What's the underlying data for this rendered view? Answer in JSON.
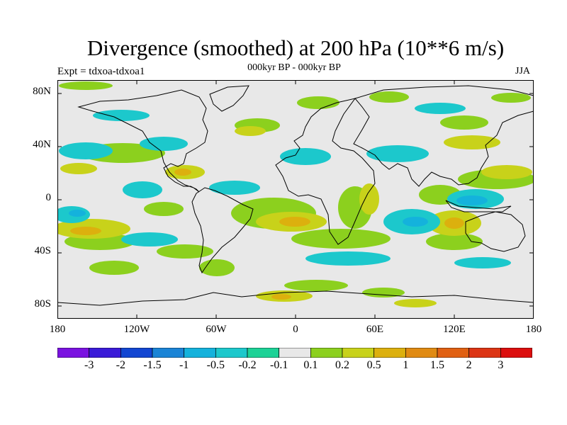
{
  "title": "Divergence (smoothed) at 200 hPa (10**6 m/s)",
  "subtitle": "000kyr BP - 000kyr BP",
  "experiment_label": "Expt = tdxoa-tdxoa1",
  "season_label": "JJA",
  "latitude_labels": [
    "80N",
    "40N",
    "0",
    "40S",
    "80S"
  ],
  "longitude_labels": [
    "180",
    "120W",
    "60W",
    "0",
    "60E",
    "120E",
    "180"
  ],
  "colorbar": {
    "labels": [
      "-3",
      "-2",
      "-1.5",
      "-1",
      "-0.5",
      "-0.2",
      "-0.1",
      "0.1",
      "0.2",
      "0.5",
      "1",
      "1.5",
      "2",
      "3"
    ],
    "colors": [
      "#7a12e0",
      "#3a1ad8",
      "#1246d2",
      "#1a84d6",
      "#14b2dc",
      "#1cc8cc",
      "#1cd296",
      "#e8e8e8",
      "#8cd01e",
      "#c8d21a",
      "#dcb00e",
      "#e08a12",
      "#e06012",
      "#dc3414",
      "#dc0e0e"
    ]
  },
  "colors": {
    "ocean_background": "#e8e8e8",
    "coastline": "#000000"
  }
}
